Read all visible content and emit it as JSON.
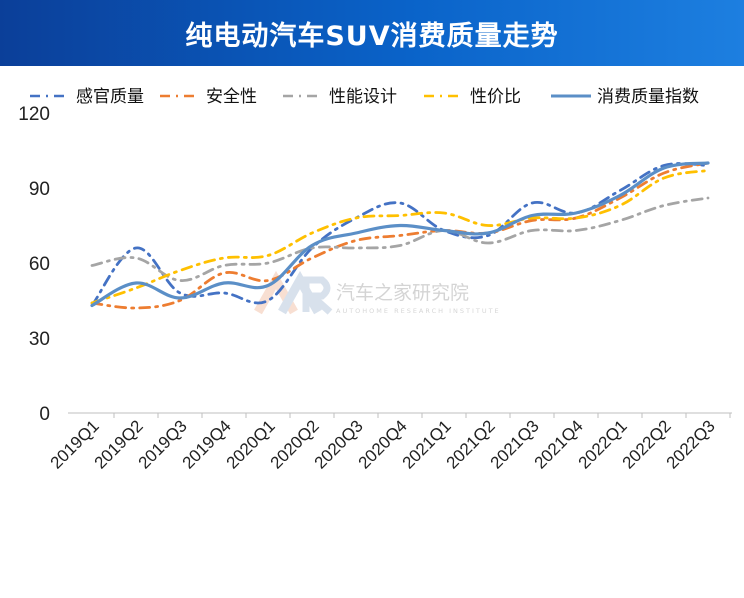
{
  "chart_data": {
    "type": "line",
    "title": "纯电动汽车SUV消费质量走势",
    "categories": [
      "2019Q1",
      "2019Q2",
      "2019Q3",
      "2019Q4",
      "2020Q1",
      "2020Q2",
      "2020Q3",
      "2020Q4",
      "2021Q1",
      "2021Q2",
      "2021Q3",
      "2021Q4",
      "2022Q1",
      "2022Q2",
      "2022Q3"
    ],
    "ylim": [
      0,
      120
    ],
    "yticks": [
      "0",
      "30",
      "60",
      "90",
      "120"
    ],
    "legend_position": "top",
    "series": [
      {
        "name": "感官质量",
        "color": "#4472c4",
        "dash": "dashdot",
        "values": [
          43,
          66,
          48,
          48,
          45,
          66,
          78,
          84,
          73,
          71,
          84,
          80,
          89,
          99,
          99
        ]
      },
      {
        "name": "安全性",
        "color": "#ed7d31",
        "dash": "dashdot",
        "values": [
          44,
          42,
          45,
          56,
          53,
          62,
          69,
          71,
          73,
          72,
          77,
          78,
          86,
          96,
          100
        ]
      },
      {
        "name": "性能设计",
        "color": "#a5a5a5",
        "dash": "dashdot",
        "values": [
          59,
          62,
          53,
          59,
          60,
          66,
          66,
          67,
          73,
          68,
          73,
          73,
          77,
          83,
          86
        ]
      },
      {
        "name": "性价比",
        "color": "#ffc000",
        "dash": "dashdot",
        "values": [
          44,
          50,
          57,
          62,
          63,
          72,
          78,
          79,
          80,
          75,
          78,
          78,
          83,
          94,
          97
        ]
      },
      {
        "name": "消费质量指数",
        "color": "#5b8fc7",
        "dash": "solid",
        "values": [
          43,
          52,
          46,
          52,
          51,
          67,
          72,
          75,
          73,
          72,
          79,
          80,
          87,
          98,
          100
        ]
      }
    ]
  },
  "watermark": {
    "text": "汽车之家研究院",
    "sub": "AUTOHOME RESEARCH INSTITUTE"
  }
}
